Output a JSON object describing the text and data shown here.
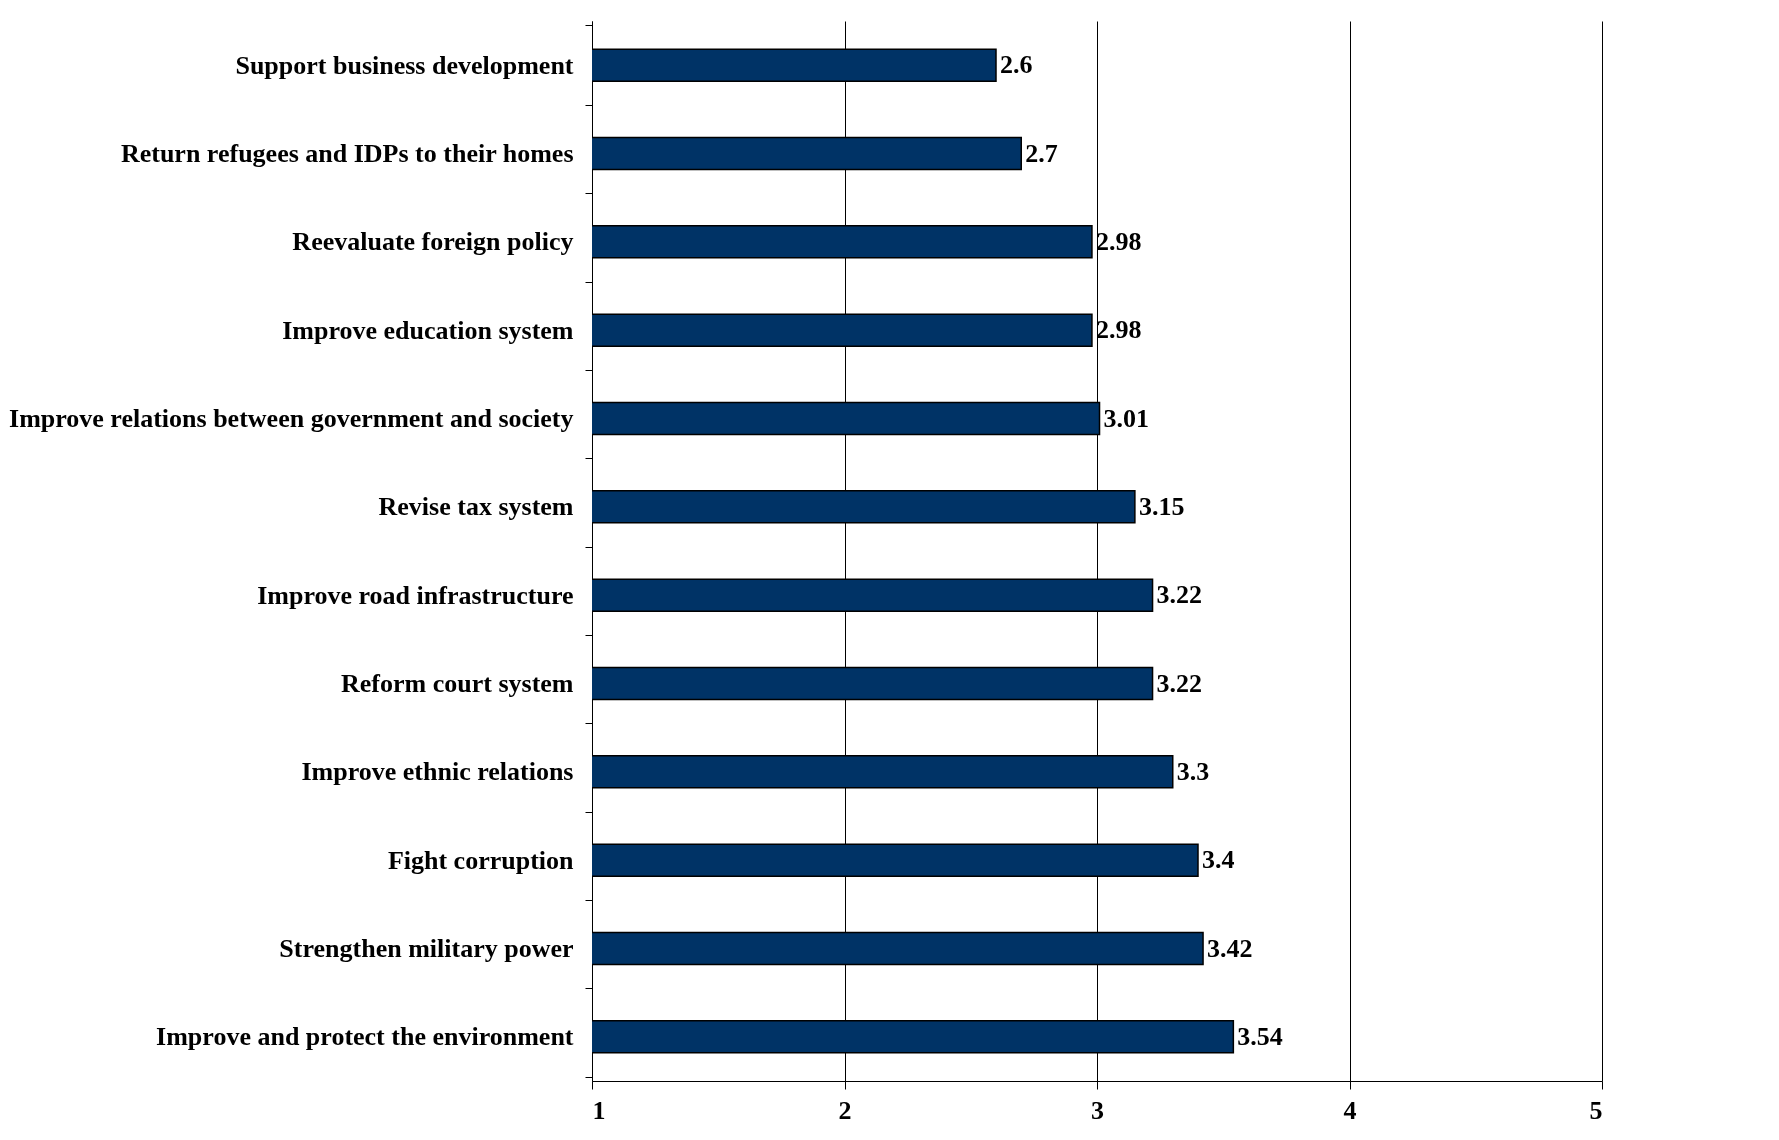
{
  "chart_data": {
    "type": "bar",
    "orientation": "horizontal",
    "categories": [
      "Support business development",
      "Return refugees and IDPs to their homes",
      "Reevaluate foreign policy",
      "Improve education system",
      "Improve relations between government and society",
      "Revise tax system",
      "Improve road infrastructure",
      "Reform court system",
      "Improve ethnic relations",
      "Fight corruption",
      "Strengthen military power",
      "Improve and protect the environment"
    ],
    "values": [
      2.6,
      2.7,
      2.98,
      2.98,
      3.01,
      3.15,
      3.22,
      3.22,
      3.3,
      3.4,
      3.42,
      3.54
    ],
    "color": "#003366",
    "xlim": [
      1,
      5
    ],
    "xticks": [
      1,
      2,
      3,
      4,
      5
    ],
    "grid": "x",
    "data_labels": true
  }
}
